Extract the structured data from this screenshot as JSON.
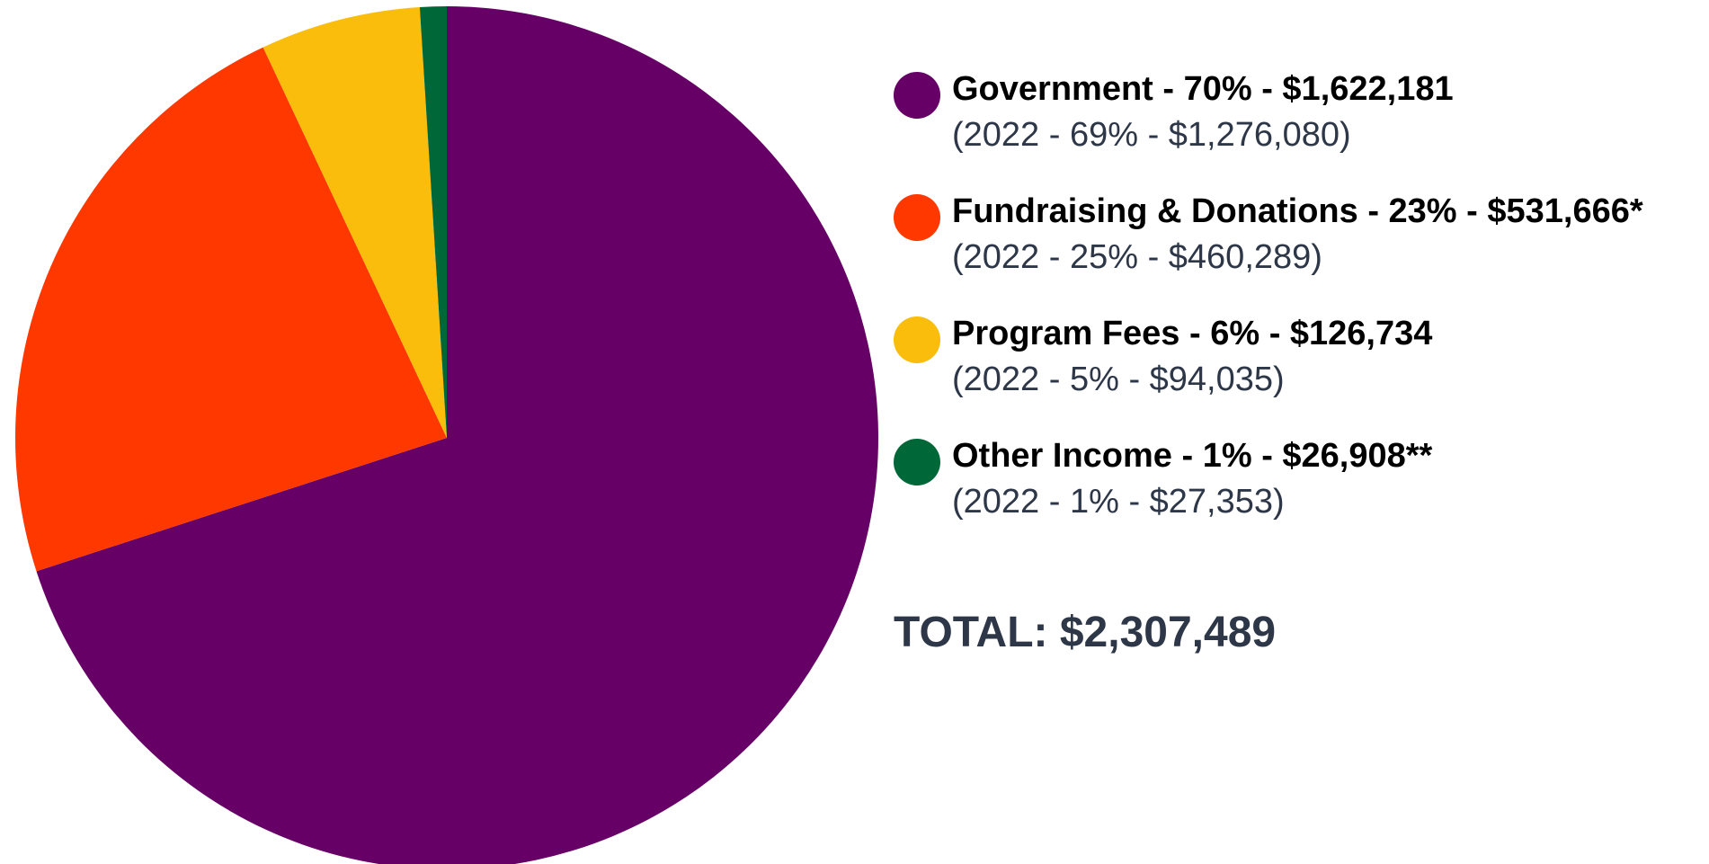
{
  "chart_data": {
    "type": "pie",
    "slices": [
      {
        "value": 70,
        "color": "#660066"
      },
      {
        "value": 23,
        "color": "#ff3800"
      },
      {
        "value": 6,
        "color": "#fbbd0b"
      },
      {
        "value": 1,
        "color": "#006838"
      }
    ],
    "legend_placement": "right"
  },
  "legend": {
    "items": [
      {
        "main": "Government - 70% - $1,622,181",
        "prev": "(2022 - 69% - $1,276,080)",
        "color": "#660066"
      },
      {
        "main": "Fundraising & Donations - 23% - $531,666*",
        "prev": "(2022 - 25% - $460,289)",
        "color": "#ff3800"
      },
      {
        "main": "Program Fees - 6% - $126,734",
        "prev": "(2022 - 5% - $94,035)",
        "color": "#fbbd0b"
      },
      {
        "main": "Other Income - 1% - $26,908**",
        "prev": "(2022 - 1% - $27,353)",
        "color": "#006838"
      }
    ]
  },
  "total": "TOTAL: $2,307,489"
}
